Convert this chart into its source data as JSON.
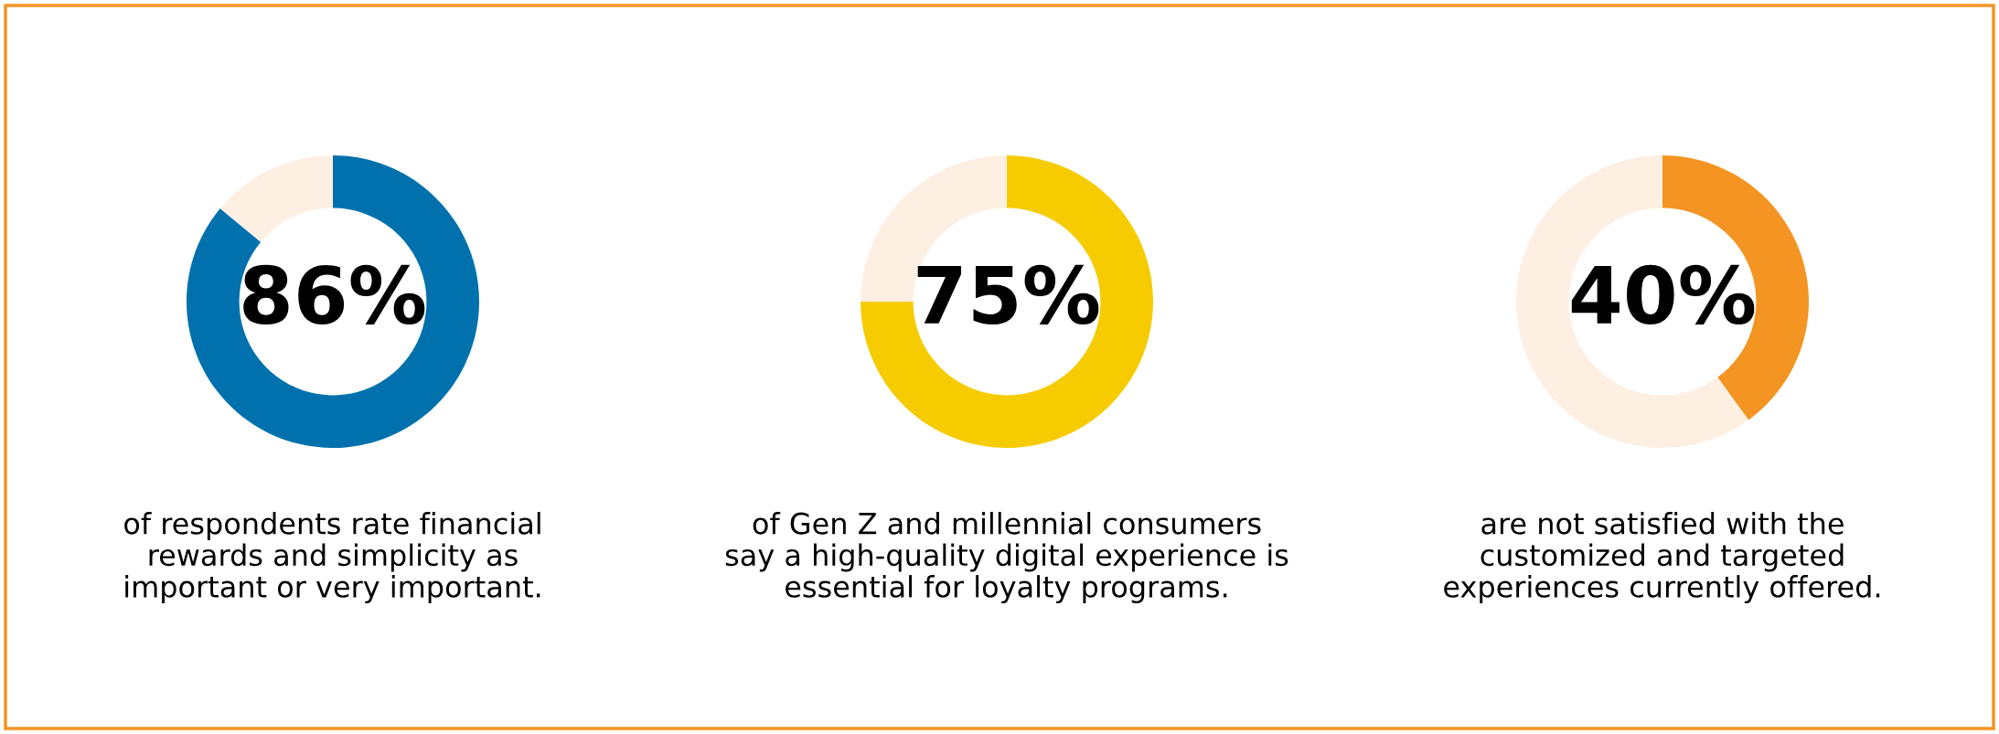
{
  "chart_data": [
    {
      "type": "donut",
      "categories": [
        null,
        null
      ],
      "values": [
        86,
        14
      ],
      "colors": [
        "#0071ad",
        "#fdf0e3"
      ],
      "value_labels": [
        "86%",
        null
      ],
      "annotations": [
        "of respondents rate financial\nrewards and simplicity as\nimportant or very important."
      ]
    },
    {
      "type": "donut",
      "categories": [
        null,
        null
      ],
      "values": [
        75,
        25
      ],
      "colors": [
        "#f6cb00",
        "#fdf0e3"
      ],
      "value_labels": [
        "75%",
        null
      ],
      "annotations": [
        "of Gen Z and millennial consumers\nsay a high-quality digital experience is\nessential for loyalty programs."
      ]
    },
    {
      "type": "donut",
      "categories": [
        null,
        null
      ],
      "values": [
        40,
        60
      ],
      "colors": [
        "#f39423",
        "#fdf0e3"
      ],
      "value_labels": [
        "40%",
        null
      ],
      "annotations": [
        "are not satisfied with the\ncustomized and targeted\nexperiences currently offered."
      ]
    }
  ]
}
